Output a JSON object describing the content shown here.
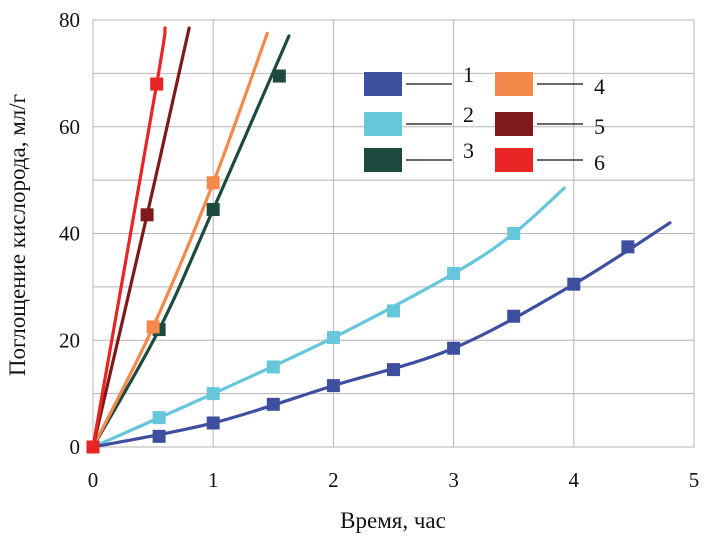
{
  "chart_data": {
    "type": "line",
    "title": "",
    "xlabel": "Время, час",
    "ylabel": "Поглощение кислорода, мл/г",
    "xlim": [
      0,
      5
    ],
    "ylim": [
      0,
      80
    ],
    "x_ticks": [
      "0",
      "1",
      "2",
      "3",
      "4",
      "5"
    ],
    "y_ticks": [
      "0",
      "20",
      "40",
      "60",
      "80"
    ],
    "grid": true,
    "legend_position": "top-right",
    "series": [
      {
        "name": "1",
        "color": "#3f4fa0",
        "points": [
          [
            0,
            0
          ],
          [
            0.55,
            2
          ],
          [
            1.0,
            4.5
          ],
          [
            1.5,
            8
          ],
          [
            2.0,
            11.5
          ],
          [
            2.5,
            14.5
          ],
          [
            3.0,
            18.5
          ],
          [
            3.5,
            24.5
          ],
          [
            4.0,
            30.5
          ],
          [
            4.45,
            37.5
          ]
        ],
        "line": [
          [
            0,
            0
          ],
          [
            1.0,
            4.5
          ],
          [
            2.0,
            11.5
          ],
          [
            3.0,
            18.5
          ],
          [
            4.0,
            30.5
          ],
          [
            4.8,
            42
          ]
        ]
      },
      {
        "name": "2",
        "color": "#66c6dc",
        "points": [
          [
            0,
            0
          ],
          [
            0.55,
            5.5
          ],
          [
            1.0,
            10
          ],
          [
            1.5,
            15
          ],
          [
            2.0,
            20.5
          ],
          [
            2.5,
            25.5
          ],
          [
            3.0,
            32.5
          ],
          [
            3.5,
            40
          ]
        ],
        "line": [
          [
            0,
            0
          ],
          [
            1.0,
            10
          ],
          [
            2.0,
            20.5
          ],
          [
            3.0,
            32.5
          ],
          [
            3.5,
            40
          ],
          [
            3.92,
            48.5
          ]
        ]
      },
      {
        "name": "3",
        "color": "#1c4a3e",
        "points": [
          [
            0,
            0
          ],
          [
            0.55,
            22
          ],
          [
            1.0,
            44.5
          ],
          [
            1.55,
            69.5
          ]
        ],
        "line": [
          [
            0,
            0
          ],
          [
            0.55,
            22
          ],
          [
            1.0,
            44.5
          ],
          [
            1.63,
            77
          ]
        ]
      },
      {
        "name": "4",
        "color": "#f5894a",
        "points": [
          [
            0,
            0
          ],
          [
            0.5,
            22.5
          ],
          [
            1.0,
            49.5
          ]
        ],
        "line": [
          [
            0,
            0
          ],
          [
            0.5,
            22.5
          ],
          [
            1.0,
            49.5
          ],
          [
            1.45,
            77.5
          ]
        ]
      },
      {
        "name": "5",
        "color": "#801919",
        "points": [
          [
            0,
            0
          ],
          [
            0.45,
            43.5
          ]
        ],
        "line": [
          [
            0,
            0
          ],
          [
            0.45,
            43.5
          ],
          [
            0.8,
            78.5
          ]
        ]
      },
      {
        "name": "6",
        "color": "#e82424",
        "points": [
          [
            0,
            0
          ],
          [
            0.53,
            68
          ]
        ],
        "line": [
          [
            0,
            0
          ],
          [
            0.53,
            68
          ],
          [
            0.6,
            78.5
          ]
        ]
      }
    ]
  }
}
